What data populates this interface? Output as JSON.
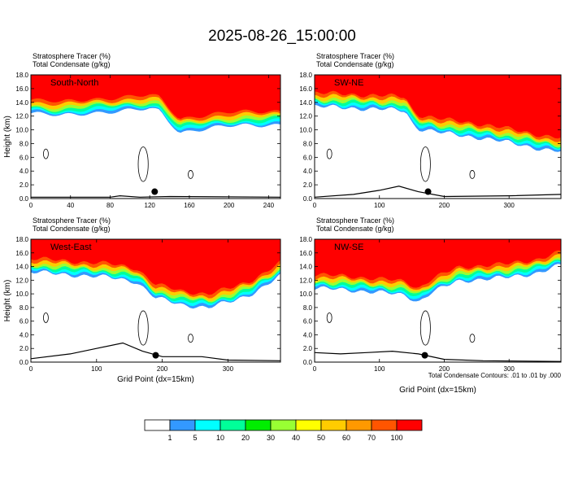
{
  "title": "2025-08-26_15:00:00",
  "footnote": "Total Condensate Contours: .01 to .01 by .000",
  "colorbar": {
    "colors": [
      "#ffffff",
      "#3399ff",
      "#00ffff",
      "#00ff99",
      "#00ee00",
      "#99ff33",
      "#ffff00",
      "#ffcc00",
      "#ff9900",
      "#ff5500",
      "#ff0000"
    ],
    "labels": [
      "1",
      "5",
      "10",
      "20",
      "30",
      "40",
      "50",
      "60",
      "70",
      "100"
    ]
  },
  "chart_data": [
    {
      "type": "heatmap",
      "section": "South-North",
      "title_lines": [
        "Stratosphere Tracer    (%)",
        "Total Condensate    (g/kg)"
      ],
      "ylabel": "Height (km)",
      "xlabel": "",
      "xlim": [
        0,
        252
      ],
      "ylim": [
        0,
        18
      ],
      "x_ticks": [
        0,
        40,
        80,
        120,
        160,
        200,
        240
      ],
      "y_ticks": [
        "0.0",
        "2.0",
        "4.0",
        "6.0",
        "8.0",
        "10.0",
        "12.0",
        "14.0",
        "16.0",
        "18.0"
      ],
      "marker_x": 125,
      "tracer_base_km": [
        [
          0,
          13.2
        ],
        [
          30,
          12.8
        ],
        [
          60,
          13.3
        ],
        [
          100,
          13.6
        ],
        [
          120,
          13.8
        ],
        [
          130,
          13.5
        ],
        [
          140,
          12.0
        ],
        [
          150,
          10.4
        ],
        [
          165,
          10.8
        ],
        [
          200,
          11.3
        ],
        [
          252,
          11.6
        ]
      ],
      "terrain_km": [
        [
          0,
          0.2
        ],
        [
          80,
          0.2
        ],
        [
          90,
          0.4
        ],
        [
          110,
          0.2
        ],
        [
          140,
          0.3
        ],
        [
          252,
          0.2
        ]
      ]
    },
    {
      "type": "heatmap",
      "section": "SW-NE",
      "title_lines": [
        "Stratosphere Tracer    (%)",
        "Total Condensate    (g/kg)"
      ],
      "ylabel": "",
      "xlabel": "",
      "xlim": [
        0,
        380
      ],
      "ylim": [
        0,
        18
      ],
      "x_ticks": [
        0,
        100,
        200,
        300
      ],
      "y_ticks": [
        "0.0",
        "2.0",
        "4.0",
        "6.0",
        "8.0",
        "10.0",
        "12.0",
        "14.0",
        "16.0",
        "18.0"
      ],
      "marker_x": 175,
      "tracer_base_km": [
        [
          0,
          14.2
        ],
        [
          50,
          14.0
        ],
        [
          100,
          13.8
        ],
        [
          140,
          13.6
        ],
        [
          150,
          11.8
        ],
        [
          160,
          11.0
        ],
        [
          200,
          10.3
        ],
        [
          260,
          9.6
        ],
        [
          320,
          8.6
        ],
        [
          350,
          8.0
        ],
        [
          380,
          7.6
        ]
      ],
      "terrain_km": [
        [
          0,
          0.2
        ],
        [
          60,
          0.6
        ],
        [
          100,
          1.2
        ],
        [
          130,
          1.8
        ],
        [
          160,
          1.0
        ],
        [
          200,
          0.3
        ],
        [
          300,
          0.4
        ],
        [
          380,
          0.6
        ]
      ]
    },
    {
      "type": "heatmap",
      "section": "West-East",
      "title_lines": [
        "Stratosphere Tracer    (%)",
        "Total Condensate    (g/kg)"
      ],
      "ylabel": "Height (km)",
      "xlabel": "Grid Point (dx=15km)",
      "xlim": [
        0,
        380
      ],
      "ylim": [
        0,
        18
      ],
      "x_ticks": [
        0,
        100,
        200,
        300
      ],
      "y_ticks": [
        "0.0",
        "2.0",
        "4.0",
        "6.0",
        "8.0",
        "10.0",
        "12.0",
        "14.0",
        "16.0",
        "18.0"
      ],
      "marker_x": 190,
      "tracer_base_km": [
        [
          0,
          14.0
        ],
        [
          60,
          13.6
        ],
        [
          120,
          13.2
        ],
        [
          160,
          12.6
        ],
        [
          190,
          10.2
        ],
        [
          230,
          9.2
        ],
        [
          270,
          8.8
        ],
        [
          310,
          9.8
        ],
        [
          340,
          11.0
        ],
        [
          380,
          13.4
        ]
      ],
      "terrain_km": [
        [
          0,
          0.5
        ],
        [
          60,
          1.2
        ],
        [
          100,
          2.0
        ],
        [
          140,
          2.8
        ],
        [
          170,
          1.6
        ],
        [
          200,
          0.8
        ],
        [
          260,
          0.8
        ],
        [
          300,
          0.3
        ],
        [
          380,
          0.2
        ]
      ]
    },
    {
      "type": "heatmap",
      "section": "NW-SE",
      "title_lines": [
        "Stratosphere Tracer    (%)",
        "Total Condensate    (g/kg)"
      ],
      "ylabel": "",
      "xlabel": "Grid Point (dx=15km)",
      "xlim": [
        0,
        380
      ],
      "ylim": [
        0,
        18
      ],
      "x_ticks": [
        0,
        100,
        200,
        300
      ],
      "y_ticks": [
        "0.0",
        "2.0",
        "4.0",
        "6.0",
        "8.0",
        "10.0",
        "12.0",
        "14.0",
        "16.0",
        "18.0"
      ],
      "marker_x": 170,
      "tracer_base_km": [
        [
          0,
          11.6
        ],
        [
          50,
          11.4
        ],
        [
          100,
          11.0
        ],
        [
          140,
          10.6
        ],
        [
          160,
          9.6
        ],
        [
          180,
          11.0
        ],
        [
          220,
          12.6
        ],
        [
          260,
          13.0
        ],
        [
          300,
          13.2
        ],
        [
          340,
          13.8
        ],
        [
          380,
          15.0
        ]
      ],
      "terrain_km": [
        [
          0,
          1.4
        ],
        [
          40,
          1.2
        ],
        [
          80,
          1.4
        ],
        [
          120,
          1.6
        ],
        [
          160,
          1.2
        ],
        [
          200,
          0.4
        ],
        [
          260,
          0.2
        ],
        [
          380,
          0.1
        ]
      ]
    }
  ]
}
